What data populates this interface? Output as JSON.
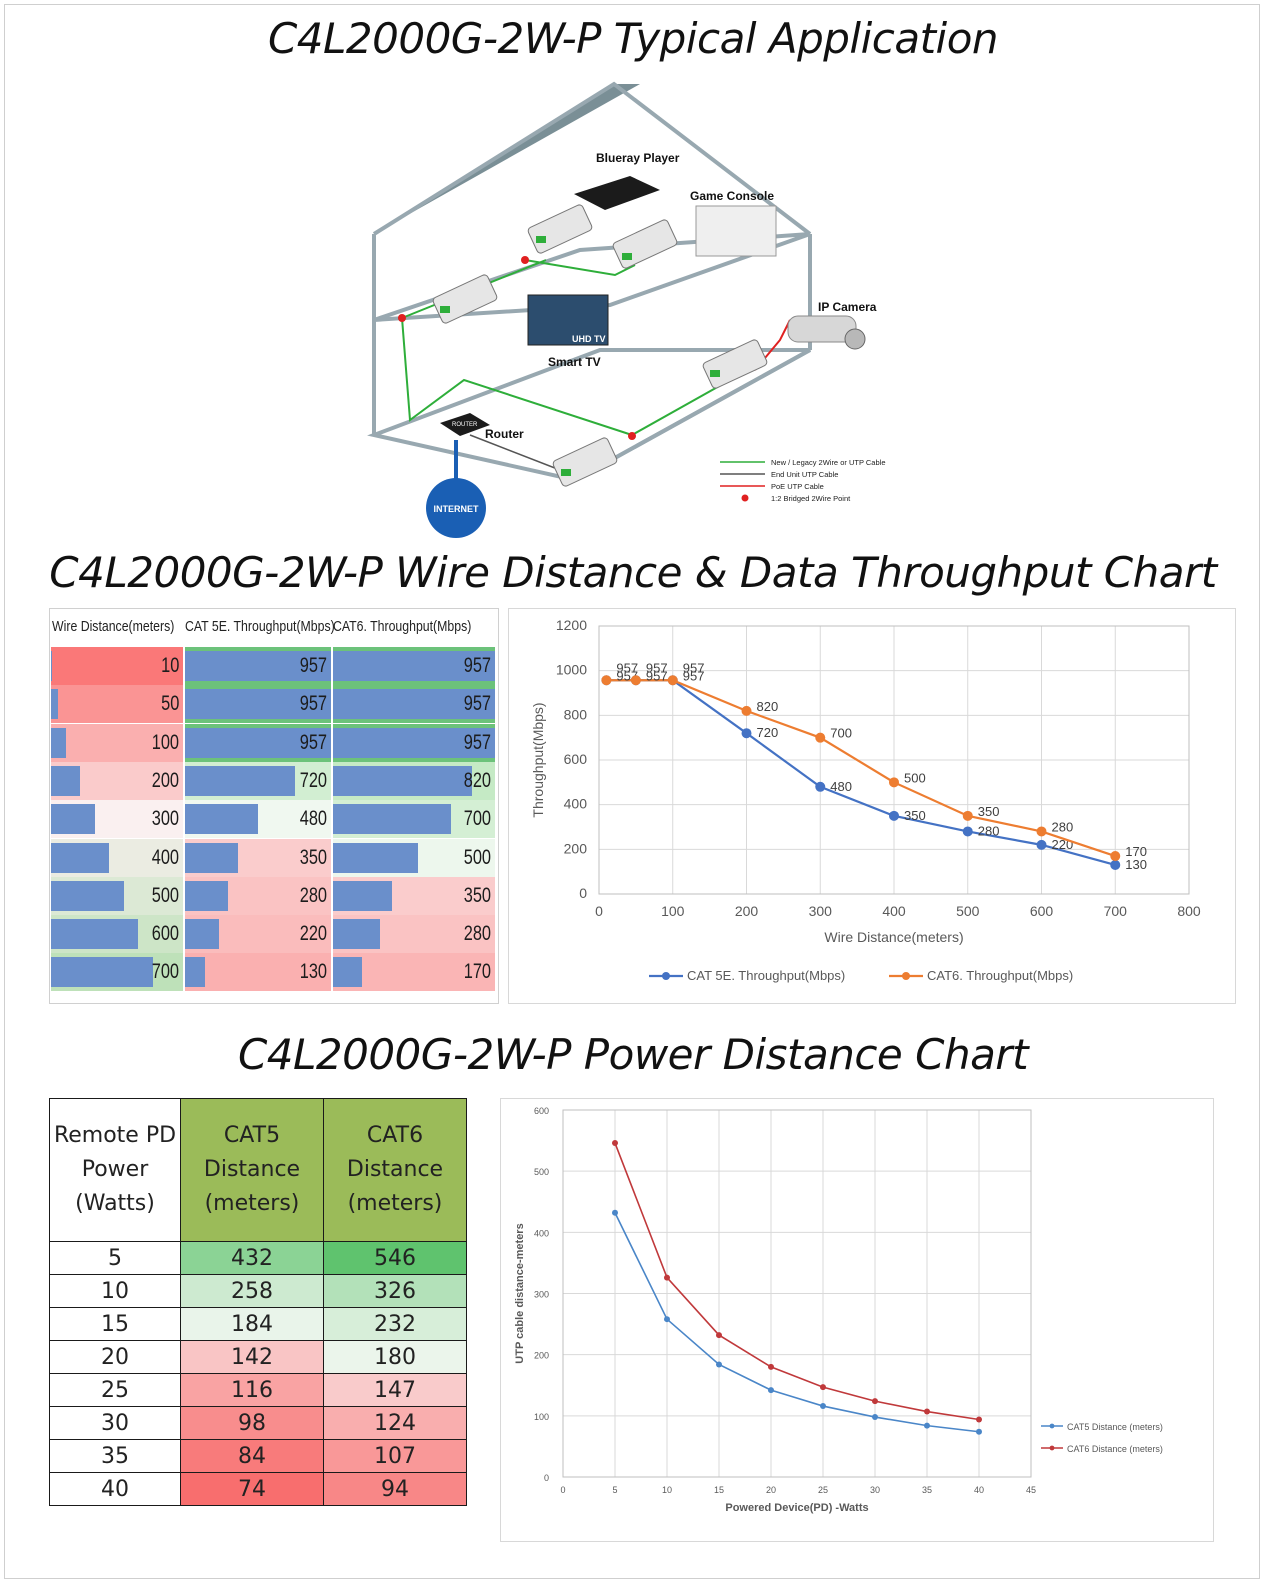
{
  "titles": {
    "typical_application": "C4L2000G-2W-P Typical Application",
    "throughput_chart": "C4L2000G-2W-P Wire Distance & Data Throughput Chart",
    "power_chart": "C4L2000G-2W-P Power Distance Chart"
  },
  "diagram": {
    "labels": {
      "blueray": "Blueray Player",
      "game_console": "Game Console",
      "ip_camera": "IP Camera",
      "smart_tv": "Smart TV",
      "uhd_tv": "UHD TV",
      "router": "Router",
      "router_box": "ROUTER",
      "internet": "INTERNET"
    },
    "legend": [
      {
        "label": "New / Legacy 2Wire or UTP Cable",
        "color": "#2eae3a"
      },
      {
        "label": "End Unit UTP Cable",
        "color": "#555555"
      },
      {
        "label": "PoE UTP Cable",
        "color": "#e02020"
      },
      {
        "label": "1:2 Bridged 2Wire Point",
        "color": "#e02020"
      }
    ]
  },
  "throughput_table": {
    "headers": [
      "Wire Distance(meters)",
      "CAT 5E. Throughput(Mbps)",
      "CAT6. Throughput(Mbps)"
    ],
    "rows": [
      {
        "distance": "10",
        "cat5e": "957",
        "cat6": "957"
      },
      {
        "distance": "50",
        "cat5e": "957",
        "cat6": "957"
      },
      {
        "distance": "100",
        "cat5e": "957",
        "cat6": "957"
      },
      {
        "distance": "200",
        "cat5e": "720",
        "cat6": "820"
      },
      {
        "distance": "300",
        "cat5e": "480",
        "cat6": "700"
      },
      {
        "distance": "400",
        "cat5e": "350",
        "cat6": "500"
      },
      {
        "distance": "500",
        "cat5e": "280",
        "cat6": "350"
      },
      {
        "distance": "600",
        "cat5e": "220",
        "cat6": "280"
      },
      {
        "distance": "700",
        "cat5e": "130",
        "cat6": "170"
      }
    ]
  },
  "power_table": {
    "headers": [
      "Remote PD Power (Watts)",
      "CAT5 Distance (meters)",
      "CAT6 Distance (meters)"
    ],
    "rows": [
      {
        "watts": "5",
        "cat5": "432",
        "cat6": "546"
      },
      {
        "watts": "10",
        "cat5": "258",
        "cat6": "326"
      },
      {
        "watts": "15",
        "cat5": "184",
        "cat6": "232"
      },
      {
        "watts": "20",
        "cat5": "142",
        "cat6": "180"
      },
      {
        "watts": "25",
        "cat5": "116",
        "cat6": "147"
      },
      {
        "watts": "30",
        "cat5": "98",
        "cat6": "124"
      },
      {
        "watts": "35",
        "cat5": "84",
        "cat6": "107"
      },
      {
        "watts": "40",
        "cat5": "74",
        "cat6": "94"
      }
    ],
    "header_color": "#9bbb59"
  },
  "chart_data": [
    {
      "type": "line",
      "title": "",
      "xlabel": "Wire Distance(meters)",
      "ylabel": "Throughput(Mbps)",
      "xlim": [
        0,
        800
      ],
      "ylim": [
        0,
        1200
      ],
      "xticks": [
        "0",
        "100",
        "200",
        "300",
        "400",
        "500",
        "600",
        "700",
        "800"
      ],
      "yticks": [
        "0",
        "200",
        "400",
        "600",
        "800",
        "1000",
        "1200"
      ],
      "grid": true,
      "legend": "bottom",
      "series": [
        {
          "name": "CAT 5E. Throughput(Mbps)",
          "color": "#4472c4",
          "x": [
            10,
            50,
            100,
            200,
            300,
            400,
            500,
            600,
            700
          ],
          "y": [
            957,
            957,
            957,
            720,
            480,
            350,
            280,
            220,
            130
          ]
        },
        {
          "name": "CAT6. Throughput(Mbps)",
          "color": "#ed7d31",
          "x": [
            10,
            50,
            100,
            200,
            300,
            400,
            500,
            600,
            700
          ],
          "y": [
            957,
            957,
            957,
            820,
            700,
            500,
            350,
            280,
            170
          ]
        }
      ]
    },
    {
      "type": "line",
      "title": "",
      "xlabel": "Powered Device(PD) -Watts",
      "ylabel": "UTP cable distance-meters",
      "xlim": [
        0,
        45
      ],
      "ylim": [
        0,
        600
      ],
      "xticks": [
        "0",
        "5",
        "10",
        "15",
        "20",
        "25",
        "30",
        "35",
        "40",
        "45"
      ],
      "yticks": [
        "0",
        "100",
        "200",
        "300",
        "400",
        "500",
        "600"
      ],
      "grid": true,
      "legend": "right",
      "series": [
        {
          "name": "CAT5 Distance (meters)",
          "color": "#4a86c8",
          "x": [
            5,
            10,
            15,
            20,
            25,
            30,
            35,
            40
          ],
          "y": [
            432,
            258,
            184,
            142,
            116,
            98,
            84,
            74
          ]
        },
        {
          "name": "CAT6 Distance (meters)",
          "color": "#c0393b",
          "x": [
            5,
            10,
            15,
            20,
            25,
            30,
            35,
            40
          ],
          "y": [
            546,
            326,
            232,
            180,
            147,
            124,
            107,
            94
          ]
        }
      ]
    }
  ]
}
